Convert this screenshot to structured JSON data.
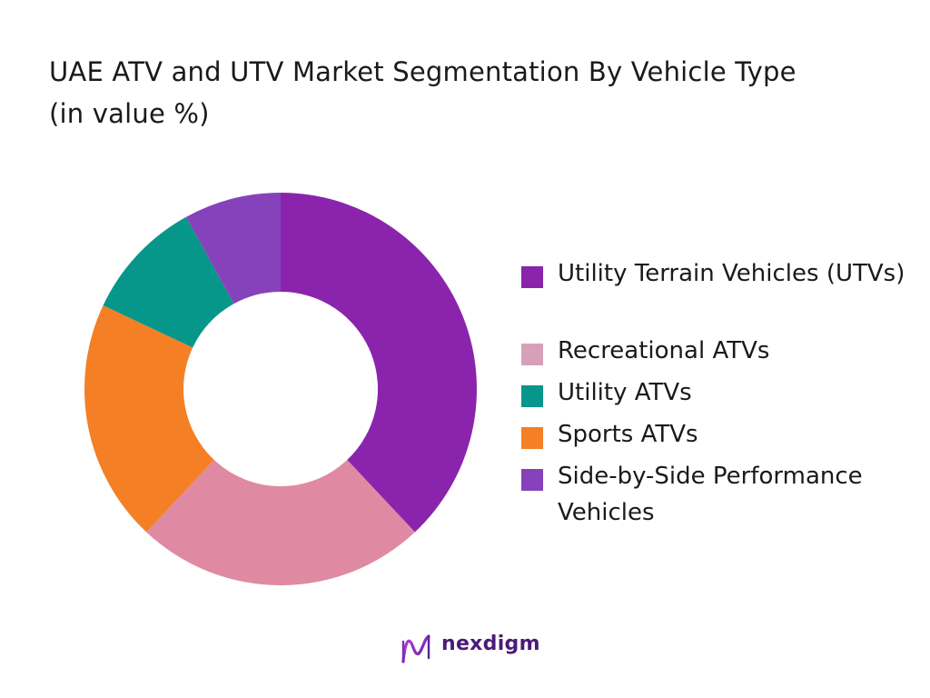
{
  "chart_data": {
    "type": "pie",
    "donut": true,
    "title": "UAE ATV and UTV Market Segmentation By Vehicle Type (in value %)",
    "categories": [
      "Utility Terrain Vehicles (UTVs)",
      "Recreational ATVs",
      "Utility ATVs",
      "Sports ATVs",
      "Side-by-Side Performance Vehicles"
    ],
    "values": [
      38,
      24,
      10,
      20,
      8
    ],
    "slice_order": [
      0,
      1,
      3,
      2,
      4
    ],
    "colors": [
      "#8b24ad",
      "#df8aa2",
      "#07968a",
      "#f47f24",
      "#8642bb"
    ],
    "legend_colors": [
      "#8b24ad",
      "#d7a0ba",
      "#07968a",
      "#f47f24",
      "#8642bb"
    ],
    "legend_position": "right",
    "unit": "%"
  },
  "brand": {
    "name": "nexdigm"
  }
}
